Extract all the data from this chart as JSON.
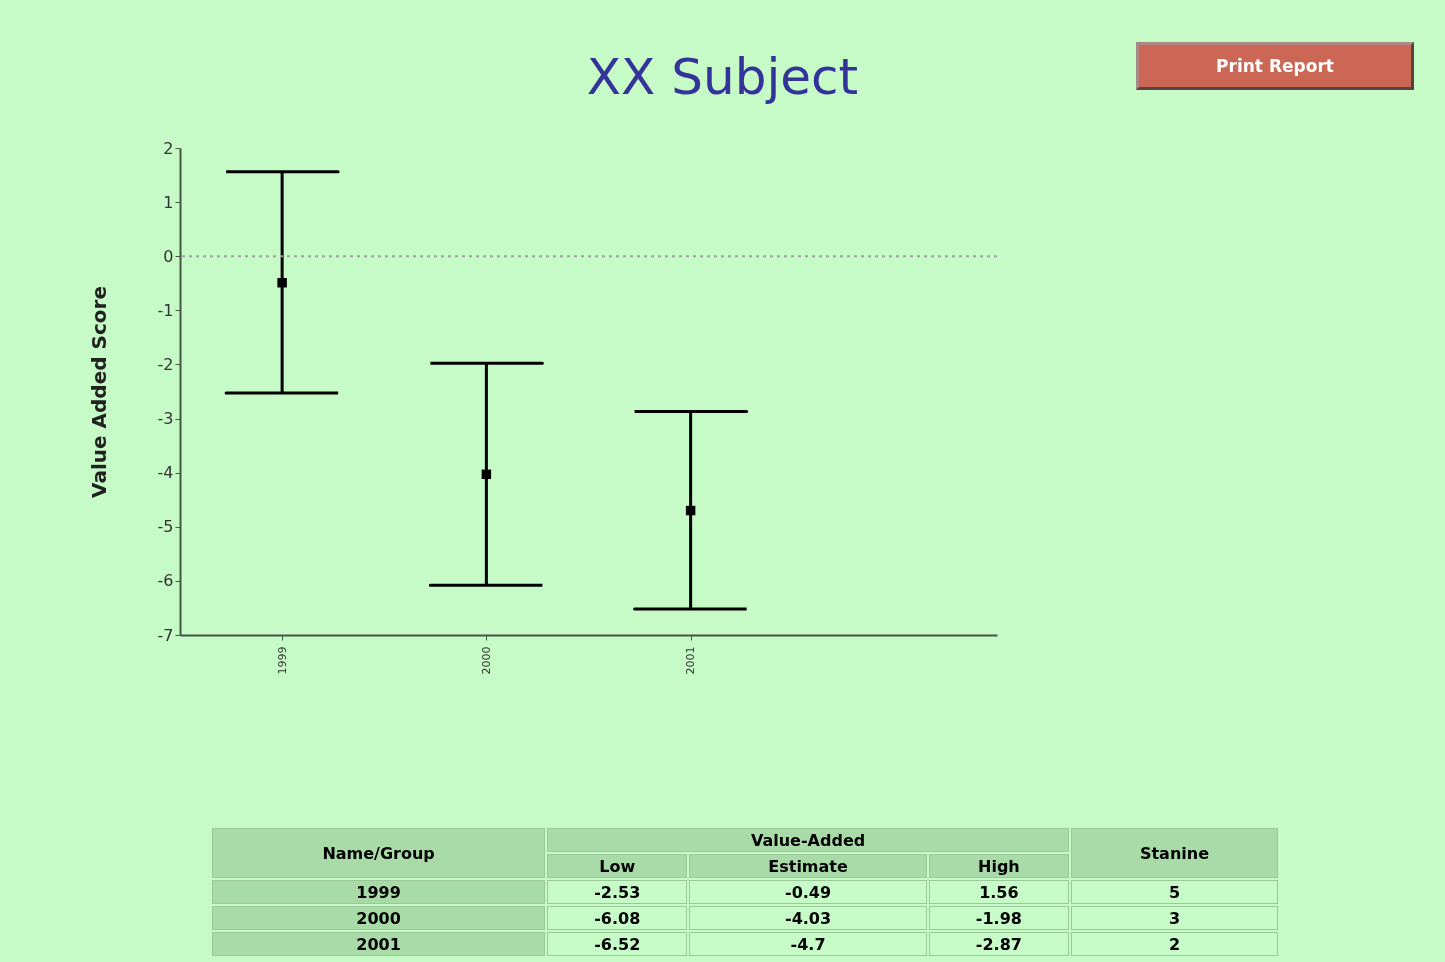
{
  "chart_data": {
    "type": "scatter",
    "title": "XX Subject",
    "ylabel": "Value Added Score",
    "categories": [
      "1999",
      "2000",
      "2001"
    ],
    "values": [
      -0.49,
      -4.03,
      -4.7
    ],
    "color": "#000000",
    "errors": [
      [
        -2.53,
        1.56
      ],
      [
        -6.08,
        -1.98
      ],
      [
        -6.52,
        -2.87
      ]
    ],
    "ylim": [
      -7,
      2
    ],
    "yticks": [
      -7,
      -6,
      -5,
      -4,
      -3,
      -2,
      -1,
      0,
      1,
      2
    ],
    "ref_lines": [
      {
        "axis": "y",
        "value": 0,
        "color": "#a0a0a0",
        "line_style": "dotted"
      }
    ],
    "marker": "square",
    "grid": false,
    "annotations": [
      "Name/Group",
      "Value-Added",
      "Low",
      "Estimate",
      "High",
      "Stanine",
      "1999",
      "-2.53",
      "-0.49",
      "1.56",
      "5",
      "2000",
      "-6.08",
      "-4.03",
      "-1.98",
      "3",
      "2001",
      "-6.52",
      "-4.7",
      "-2.87",
      "2",
      "Print Report"
    ]
  }
}
